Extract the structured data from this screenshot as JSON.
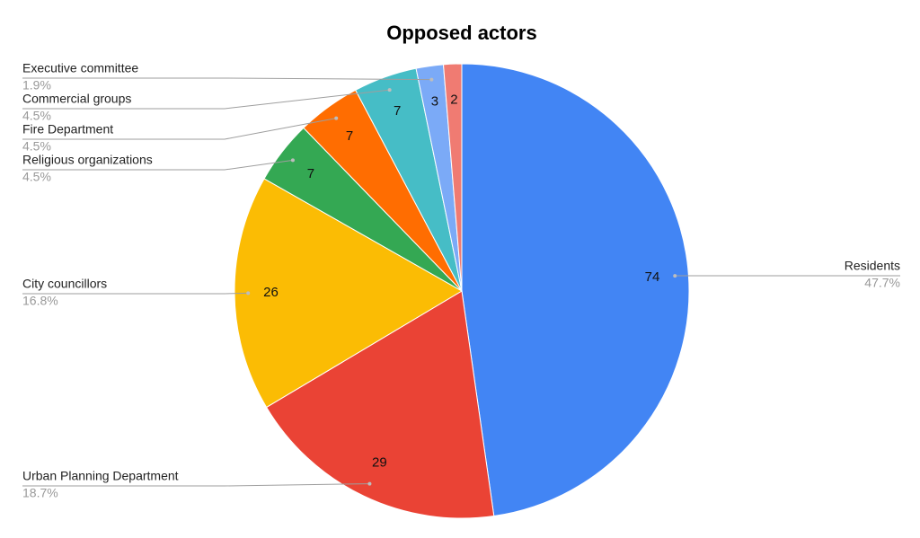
{
  "chart_data": {
    "type": "pie",
    "title": "Opposed actors",
    "categories": [
      "Residents",
      "Urban Planning Department",
      "City councillors",
      "Religious organizations",
      "Fire Department",
      "Commercial groups",
      "Executive committee",
      null
    ],
    "values": [
      74,
      29,
      26,
      7,
      7,
      7,
      3,
      2
    ],
    "percent_labels": [
      "47.7%",
      "18.7%",
      "16.8%",
      "4.5%",
      "4.5%",
      "4.5%",
      "1.9%",
      null
    ],
    "colors": [
      "#4285f4",
      "#ea4335",
      "#fbbc04",
      "#34a853",
      "#ff6d01",
      "#46bdc6",
      "#7baaf7",
      "#f07b72"
    ]
  }
}
